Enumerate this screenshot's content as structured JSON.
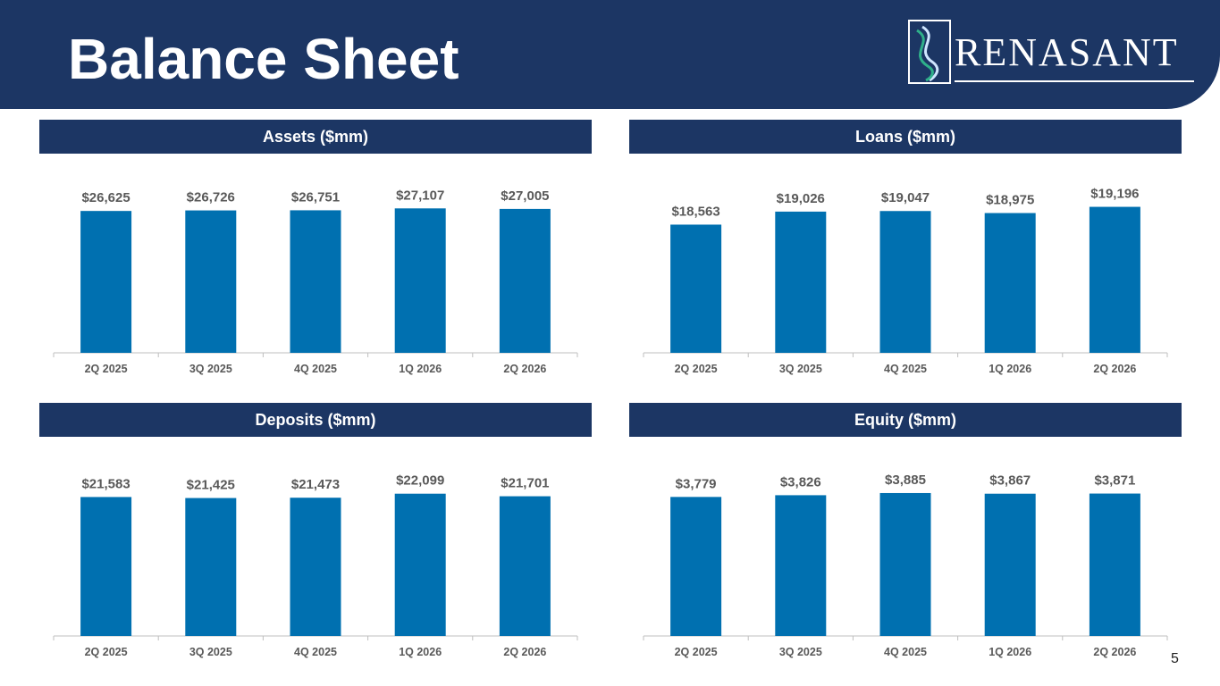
{
  "slide": {
    "title": "Balance Sheet",
    "page_number": "5"
  },
  "logo": {
    "text": "RENASANT"
  },
  "colors": {
    "header": "#1c3664",
    "bar": "#0070b0",
    "label": "#595959",
    "axis": "#bfbfbf"
  },
  "chart_data": [
    {
      "type": "bar",
      "title": "Assets ($mm)",
      "categories": [
        "2Q 2025",
        "3Q 2025",
        "4Q 2025",
        "1Q 2026",
        "2Q 2026"
      ],
      "values": [
        26625,
        26726,
        26751,
        27107,
        27005
      ],
      "labels": [
        "$26,625",
        "$26,726",
        "$26,751",
        "$27,107",
        "$27,005"
      ],
      "ylim": [
        0,
        29000
      ]
    },
    {
      "type": "bar",
      "title": "Loans ($mm)",
      "categories": [
        "2Q 2025",
        "3Q 2025",
        "4Q 2025",
        "1Q 2026",
        "2Q 2026"
      ],
      "values": [
        18563,
        19026,
        19047,
        18975,
        19196
      ],
      "labels": [
        "$18,563",
        "$19,026",
        "$19,047",
        "$18,975",
        "$19,196"
      ],
      "ylim": [
        14000,
        19500
      ]
    },
    {
      "type": "bar",
      "title": "Deposits ($mm)",
      "categories": [
        "2Q 2025",
        "3Q 2025",
        "4Q 2025",
        "1Q 2026",
        "2Q 2026"
      ],
      "values": [
        21583,
        21425,
        21473,
        22099,
        21701
      ],
      "labels": [
        "$21,583",
        "$21,425",
        "$21,473",
        "$22,099",
        "$21,701"
      ],
      "ylim": [
        0,
        24000
      ]
    },
    {
      "type": "bar",
      "title": "Equity ($mm)",
      "categories": [
        "2Q 2025",
        "3Q 2025",
        "4Q 2025",
        "1Q 2026",
        "2Q 2026"
      ],
      "values": [
        3779,
        3826,
        3885,
        3867,
        3871
      ],
      "labels": [
        "$3,779",
        "$3,826",
        "$3,885",
        "$3,867",
        "$3,871"
      ],
      "ylim": [
        0,
        4200
      ]
    }
  ]
}
